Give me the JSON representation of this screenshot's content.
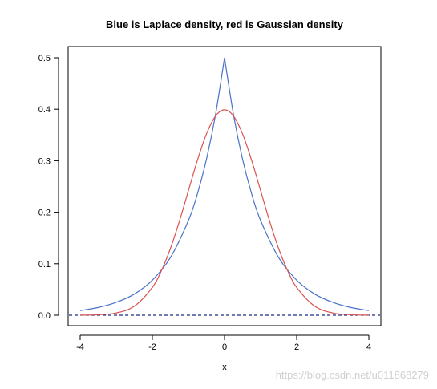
{
  "chart_data": {
    "type": "line",
    "title": "Blue is Laplace density, red is Gaussian density",
    "xlabel": "x",
    "ylabel": "",
    "xlim": [
      -4,
      4
    ],
    "ylim": [
      0,
      0.5
    ],
    "x_ticks": [
      -4,
      -2,
      0,
      2,
      4
    ],
    "x_tick_labels": [
      "-4",
      "-2",
      "0",
      "2",
      "4"
    ],
    "y_ticks": [
      0,
      0.1,
      0.2,
      0.3,
      0.4,
      0.5
    ],
    "y_tick_labels": [
      "0.0",
      "0.1",
      "0.2",
      "0.3",
      "0.4",
      "0.5"
    ],
    "grid": false,
    "legend": "none",
    "series": [
      {
        "color": "#4a72c8",
        "x": [
          -4,
          -3.5,
          -3,
          -2.5,
          -2,
          -1.5,
          -1,
          -0.75,
          -0.5,
          -0.25,
          0,
          0.25,
          0.5,
          0.75,
          1,
          1.5,
          2,
          2.5,
          3,
          3.5,
          4
        ],
        "y": [
          0.009,
          0.015,
          0.025,
          0.041,
          0.068,
          0.112,
          0.184,
          0.236,
          0.303,
          0.389,
          0.5,
          0.389,
          0.303,
          0.236,
          0.184,
          0.112,
          0.068,
          0.041,
          0.025,
          0.015,
          0.009
        ]
      },
      {
        "color": "#d9534f",
        "x": [
          -4,
          -3.5,
          -3,
          -2.5,
          -2,
          -1.75,
          -1.5,
          -1.25,
          -1,
          -0.75,
          -0.5,
          -0.25,
          0,
          0.25,
          0.5,
          0.75,
          1,
          1.25,
          1.5,
          1.75,
          2,
          2.5,
          3,
          3.5,
          4
        ],
        "y": [
          0.0001,
          0.0009,
          0.0044,
          0.0175,
          0.054,
          0.0863,
          0.1295,
          0.1826,
          0.242,
          0.3011,
          0.3521,
          0.3867,
          0.3989,
          0.3867,
          0.3521,
          0.3011,
          0.242,
          0.1826,
          0.1295,
          0.0863,
          0.054,
          0.0175,
          0.0044,
          0.0009,
          0.0001
        ]
      }
    ],
    "reference_line": {
      "y": 0,
      "style": "dashed",
      "color": "#1c2f8a"
    }
  },
  "watermark": "https://blog.csdn.net/u011868279"
}
